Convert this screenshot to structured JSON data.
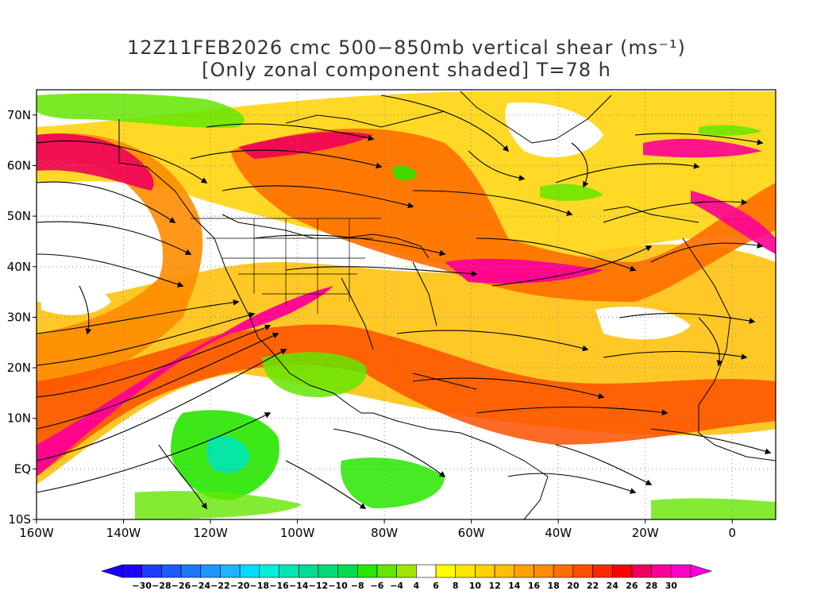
{
  "title": {
    "line1": "12Z11FEB2026 cmc 500−850mb vertical shear (ms⁻¹)",
    "line2": "[Only zonal component shaded] T=78 h"
  },
  "map": {
    "lon_range": [
      -160,
      10
    ],
    "lat_range": [
      -10,
      75
    ],
    "lat_labels": [
      {
        "lat": 70,
        "text": "70N"
      },
      {
        "lat": 60,
        "text": "60N"
      },
      {
        "lat": 50,
        "text": "50N"
      },
      {
        "lat": 40,
        "text": "40N"
      },
      {
        "lat": 30,
        "text": "30N"
      },
      {
        "lat": 20,
        "text": "20N"
      },
      {
        "lat": 10,
        "text": "10N"
      },
      {
        "lat": 0,
        "text": "EQ"
      },
      {
        "lat": -10,
        "text": "10S"
      }
    ],
    "lon_labels": [
      {
        "lon": -160,
        "text": "160W"
      },
      {
        "lon": -140,
        "text": "140W"
      },
      {
        "lon": -120,
        "text": "120W"
      },
      {
        "lon": -100,
        "text": "100W"
      },
      {
        "lon": -80,
        "text": "80W"
      },
      {
        "lon": -60,
        "text": "60W"
      },
      {
        "lon": -40,
        "text": "40W"
      },
      {
        "lon": -20,
        "text": "20W"
      },
      {
        "lon": 0,
        "text": "0"
      }
    ]
  },
  "colorbar": {
    "labels": [
      "−30",
      "−28",
      "−26",
      "−24",
      "−22",
      "−20",
      "−18",
      "−16",
      "−14",
      "−12",
      "−10",
      "−8",
      "−6",
      "−4",
      "4",
      "6",
      "8",
      "10",
      "12",
      "14",
      "16",
      "18",
      "20",
      "22",
      "24",
      "26",
      "28",
      "30"
    ],
    "colors": [
      "#1e00ff",
      "#1e3cff",
      "#1e5aff",
      "#1e78ff",
      "#1e96ff",
      "#1eb4ff",
      "#00dcff",
      "#00f0dc",
      "#00e6b4",
      "#00dc96",
      "#00dc78",
      "#00dc50",
      "#28e600",
      "#64e600",
      "#a0e600",
      "#ffffff",
      "#ffff00",
      "#ffe600",
      "#ffd200",
      "#ffbe00",
      "#ffa000",
      "#ff8c00",
      "#ff6e00",
      "#ff5000",
      "#ff2800",
      "#ff0000",
      "#f0005a",
      "#ff0096",
      "#ff00c8"
    ],
    "under_color": "#1400ff",
    "over_color": "#ff00dc"
  }
}
